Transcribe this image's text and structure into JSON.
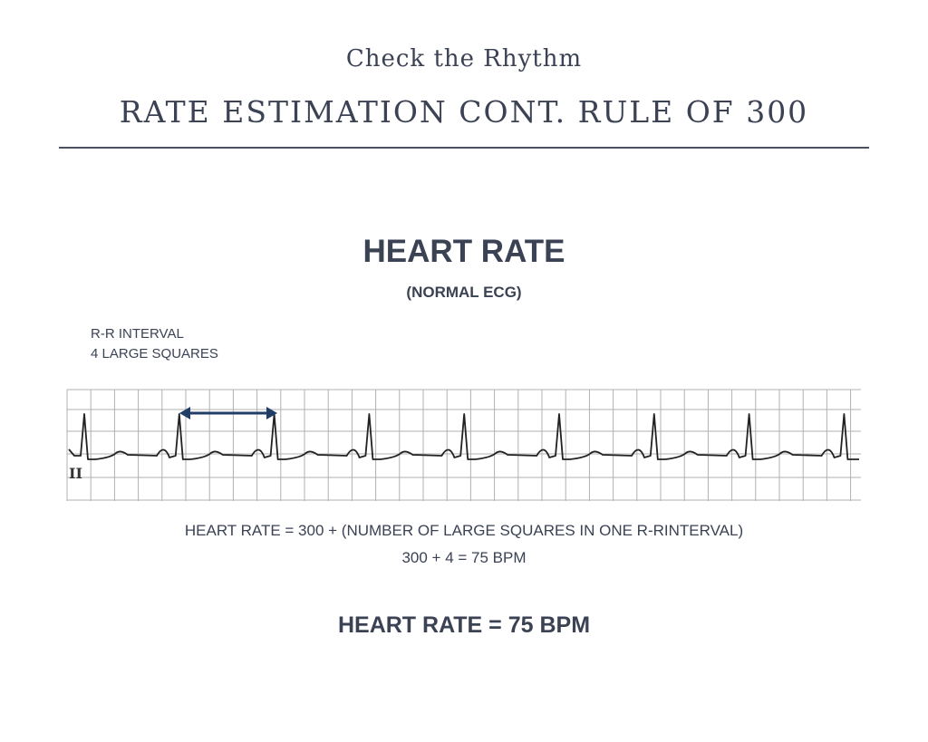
{
  "header": {
    "subtitle": "Check the Rhythm",
    "title": "RATE ESTIMATION CONT. RULE OF 300"
  },
  "main": {
    "heading": "HEART RATE",
    "subheading": "(NORMAL ECG)",
    "interval_label": [
      "R-R INTERVAL",
      "4 LARGE SQUARES"
    ],
    "lead_label": "II",
    "formula": "HEART RATE = 300 + (NUMBER OF LARGE SQUARES IN ONE R-RINTERVAL)",
    "calculation": "300 + 4 = 75  BPM",
    "result": "HEART RATE = 75 BPM"
  },
  "ecg": {
    "large_squares_per_rr": 4,
    "beats": 9,
    "colors": {
      "grid": "#b0b0b0",
      "trace": "#222222",
      "arrow": "#1f3d66"
    }
  }
}
